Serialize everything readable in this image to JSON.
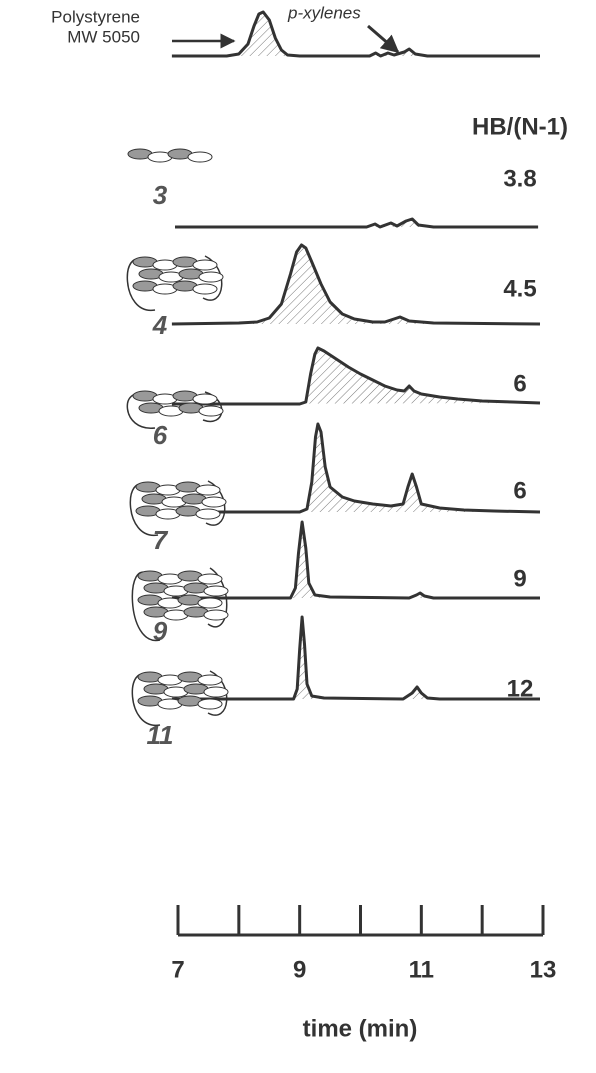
{
  "chart_data": {
    "type": "line",
    "annotations": [
      "Polystyrene",
      "MW 5050",
      "p-xylenes"
    ],
    "hb_header": "HB/(N-1)",
    "xlabel": "time (min)",
    "xlim": [
      7,
      13
    ],
    "xticks": [
      7,
      9,
      11,
      13
    ],
    "xminor_ticks": [
      8,
      10,
      12
    ],
    "color": "#333333",
    "series": [
      {
        "x": [
          6.9,
          7.8,
          8.0,
          8.15,
          8.25,
          8.33,
          8.4,
          8.5,
          8.6,
          8.7,
          8.8,
          9.0,
          10.0,
          10.15,
          10.25,
          10.33,
          10.45,
          10.55,
          10.72,
          10.8,
          10.9,
          11.1,
          12.95
        ],
        "values": [
          0,
          0,
          2,
          12,
          30,
          42,
          44,
          36,
          18,
          6,
          1,
          0,
          0,
          0,
          3,
          0,
          3,
          1,
          4,
          7,
          2,
          0,
          0
        ]
      },
      {
        "name": "3",
        "hb": 3.8,
        "x": [
          6.95,
          10.1,
          10.24,
          10.32,
          10.5,
          10.6,
          10.75,
          10.85,
          10.95,
          11.2,
          12.92
        ],
        "values": [
          0,
          0,
          3,
          0,
          4,
          1,
          6,
          8,
          2,
          0,
          0
        ]
      },
      {
        "name": "4",
        "hb": 4.5,
        "x": [
          6.9,
          8.0,
          8.3,
          8.5,
          8.7,
          8.85,
          8.95,
          9.03,
          9.1,
          9.2,
          9.35,
          9.5,
          9.7,
          9.9,
          10.2,
          10.4,
          10.55,
          10.65,
          10.8,
          11.2,
          12.95
        ],
        "values": [
          0,
          1,
          2,
          6,
          20,
          50,
          72,
          79,
          76,
          62,
          40,
          22,
          10,
          5,
          2,
          2,
          5,
          7,
          3,
          1,
          0
        ]
      },
      {
        "name": "6",
        "hb": 6,
        "x": [
          6.9,
          9.0,
          9.1,
          9.18,
          9.25,
          9.3,
          9.4,
          9.6,
          9.8,
          10.0,
          10.2,
          10.4,
          10.6,
          10.72,
          10.8,
          10.88,
          11.0,
          11.3,
          11.6,
          12.0,
          12.5,
          12.95
        ],
        "values": [
          0,
          0,
          2,
          30,
          50,
          56,
          53,
          45,
          37,
          30,
          24,
          18,
          14,
          13,
          18,
          13,
          10,
          7,
          5,
          3,
          2,
          1
        ]
      },
      {
        "name": "7",
        "hb": 6,
        "x": [
          6.9,
          9.0,
          9.12,
          9.2,
          9.26,
          9.3,
          9.35,
          9.42,
          9.5,
          9.7,
          9.9,
          10.2,
          10.5,
          10.7,
          10.78,
          10.85,
          10.92,
          11.0,
          11.3,
          11.7,
          12.2,
          12.95
        ],
        "values": [
          0,
          0,
          3,
          30,
          75,
          88,
          80,
          45,
          25,
          15,
          11,
          8,
          6,
          8,
          25,
          38,
          25,
          8,
          4,
          2,
          1,
          0
        ]
      },
      {
        "name": "9",
        "hb": 9,
        "x": [
          6.9,
          8.85,
          8.93,
          8.98,
          9.04,
          9.1,
          9.15,
          9.25,
          9.5,
          10.8,
          10.92,
          10.98,
          11.05,
          11.2,
          12.95
        ],
        "values": [
          0,
          0,
          10,
          45,
          76,
          50,
          15,
          3,
          1,
          0,
          3,
          5,
          2,
          0,
          0
        ]
      },
      {
        "name": "11",
        "hb": 12,
        "x": [
          6.9,
          8.9,
          8.96,
          9.0,
          9.04,
          9.08,
          9.12,
          9.2,
          9.4,
          10.7,
          10.85,
          10.93,
          11.0,
          11.1,
          11.3,
          12.95
        ],
        "values": [
          0,
          0,
          10,
          50,
          82,
          55,
          15,
          3,
          1,
          0,
          6,
          12,
          6,
          1,
          0,
          0
        ]
      }
    ]
  }
}
